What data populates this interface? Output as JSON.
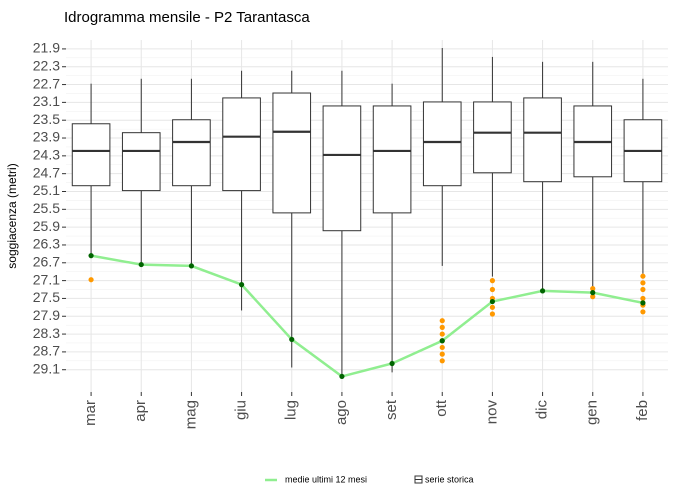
{
  "chart_data": {
    "type": "boxplot",
    "title": "Idrogramma mensile - P2 Tarantasca",
    "y_label": "soggiacenza (metri)",
    "categories": [
      "mar",
      "apr",
      "mag",
      "giu",
      "lug",
      "ago",
      "set",
      "ott",
      "nov",
      "dic",
      "gen",
      "feb"
    ],
    "ylim": [
      21.7,
      29.6
    ],
    "y_reversed": true,
    "grid": true,
    "yticks": [
      21.9,
      22.3,
      22.7,
      23.1,
      23.5,
      23.9,
      24.3,
      24.7,
      25.1,
      25.5,
      25.9,
      26.3,
      26.7,
      27.1,
      27.5,
      27.9,
      28.3,
      28.7,
      29.1
    ],
    "series": [
      {
        "name": "serie storica",
        "color": "#333333",
        "flier_color": "#ff9900",
        "boxes": [
          {
            "whislo": 22.68,
            "q1": 23.58,
            "med": 24.19,
            "q3": 24.97,
            "whishi": 26.5,
            "fliers": [
              27.08
            ]
          },
          {
            "whislo": 22.57,
            "q1": 23.78,
            "med": 24.19,
            "q3": 25.08,
            "whishi": 26.74,
            "fliers": []
          },
          {
            "whislo": 22.57,
            "q1": 23.49,
            "med": 23.99,
            "q3": 24.97,
            "whishi": 26.77,
            "fliers": []
          },
          {
            "whislo": 22.39,
            "q1": 23.0,
            "med": 23.87,
            "q3": 25.08,
            "whishi": 27.77,
            "fliers": []
          },
          {
            "whislo": 22.39,
            "q1": 22.89,
            "med": 23.76,
            "q3": 25.58,
            "whishi": 29.05,
            "fliers": []
          },
          {
            "whislo": 22.39,
            "q1": 23.18,
            "med": 24.28,
            "q3": 25.98,
            "whishi": 29.25,
            "fliers": []
          },
          {
            "whislo": 22.68,
            "q1": 23.18,
            "med": 24.19,
            "q3": 25.58,
            "whishi": 29.16,
            "fliers": []
          },
          {
            "whislo": 21.88,
            "q1": 23.09,
            "med": 23.99,
            "q3": 24.97,
            "whishi": 26.77,
            "fliers": [
              28.0,
              28.15,
              28.3,
              28.45,
              28.6,
              28.75,
              28.9
            ]
          },
          {
            "whislo": 22.08,
            "q1": 23.09,
            "med": 23.78,
            "q3": 24.68,
            "whishi": 27.01,
            "fliers": [
              27.1,
              27.3,
              27.5,
              27.7,
              27.85
            ]
          },
          {
            "whislo": 22.19,
            "q1": 23.0,
            "med": 23.78,
            "q3": 24.88,
            "whishi": 27.28,
            "fliers": []
          },
          {
            "whislo": 22.19,
            "q1": 23.18,
            "med": 23.99,
            "q3": 24.77,
            "whishi": 27.26,
            "fliers": [
              27.28,
              27.46
            ]
          },
          {
            "whislo": 22.57,
            "q1": 23.49,
            "med": 24.19,
            "q3": 24.88,
            "whishi": 26.94,
            "fliers": [
              27.0,
              27.15,
              27.3,
              27.5,
              27.65,
              27.8
            ]
          }
        ]
      },
      {
        "name": "medie ultimi 12 mesi",
        "color": "#90ee90",
        "point_color": "#006400",
        "values": [
          26.54,
          26.74,
          26.77,
          27.19,
          28.42,
          29.25,
          28.96,
          28.45,
          27.57,
          27.33,
          27.37,
          27.6
        ]
      }
    ]
  }
}
